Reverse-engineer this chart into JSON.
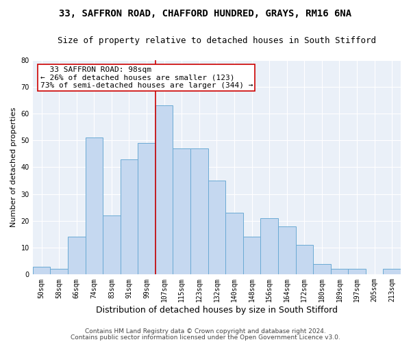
{
  "title1": "33, SAFFRON ROAD, CHAFFORD HUNDRED, GRAYS, RM16 6NA",
  "title2": "Size of property relative to detached houses in South Stifford",
  "xlabel": "Distribution of detached houses by size in South Stifford",
  "ylabel": "Number of detached properties",
  "categories": [
    "50sqm",
    "58sqm",
    "66sqm",
    "74sqm",
    "83sqm",
    "91sqm",
    "99sqm",
    "107sqm",
    "115sqm",
    "123sqm",
    "132sqm",
    "140sqm",
    "148sqm",
    "156sqm",
    "164sqm",
    "172sqm",
    "180sqm",
    "189sqm",
    "197sqm",
    "205sqm",
    "213sqm"
  ],
  "values": [
    3,
    2,
    14,
    51,
    22,
    43,
    49,
    63,
    47,
    47,
    35,
    23,
    14,
    21,
    18,
    11,
    4,
    2,
    2,
    0,
    2
  ],
  "bar_color": "#c5d8f0",
  "bar_edge_color": "#6aaad4",
  "vline_x_index": 6,
  "vline_color": "#cc0000",
  "annotation_text": "  33 SAFFRON ROAD: 98sqm  \n← 26% of detached houses are smaller (123)\n73% of semi-detached houses are larger (344) →",
  "annotation_box_color": "white",
  "annotation_box_edge_color": "#cc0000",
  "ylim": [
    0,
    80
  ],
  "yticks": [
    0,
    10,
    20,
    30,
    40,
    50,
    60,
    70,
    80
  ],
  "footer1": "Contains HM Land Registry data © Crown copyright and database right 2024.",
  "footer2": "Contains public sector information licensed under the Open Government Licence v3.0.",
  "background_color": "#eaf0f8",
  "grid_color": "white",
  "title1_fontsize": 10,
  "title2_fontsize": 9,
  "xlabel_fontsize": 9,
  "ylabel_fontsize": 8,
  "tick_fontsize": 7,
  "annotation_fontsize": 8,
  "footer_fontsize": 6.5
}
